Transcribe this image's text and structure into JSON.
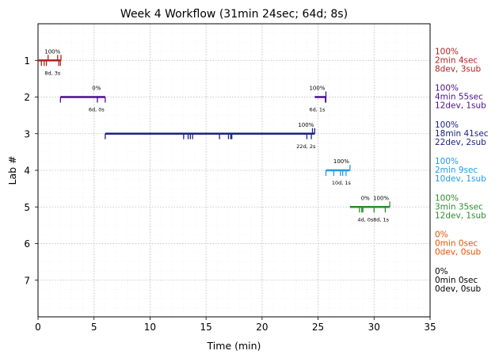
{
  "chart_data": {
    "type": "timeline",
    "title": "Week 4 Workflow (31min 24sec; 64d; 8s)",
    "xlabel": "Time (min)",
    "ylabel": "Lab #",
    "xlim": [
      0,
      35
    ],
    "ylim": [
      8,
      0
    ],
    "x_ticks": [
      0,
      5,
      10,
      15,
      20,
      25,
      30,
      35
    ],
    "y_ticks": [
      1,
      2,
      3,
      4,
      5,
      6,
      7
    ],
    "grid": true,
    "labs": [
      {
        "lab": 1,
        "color": "#b22222",
        "segments": [
          {
            "start": 0.0,
            "end": 2.07,
            "pct_label": "100%",
            "count_label": "8d, 3s",
            "dev_ticks": [
              0.3,
              0.55,
              0.75,
              1.85,
              2.0
            ],
            "sub_ticks": [
              0.9,
              1.75,
              2.05
            ]
          }
        ],
        "summary": [
          "100%",
          "2min 4sec",
          "8dev, 3sub"
        ]
      },
      {
        "lab": 2,
        "color": "#4b0f8f",
        "segments": [
          {
            "start": 2.0,
            "end": 6.0,
            "pct_label": "0%",
            "count_label": "6d, 0s",
            "dev_ticks": [
              2.0,
              5.3,
              6.0
            ],
            "sub_ticks": []
          },
          {
            "start": 24.7,
            "end": 25.7,
            "pct_label": "100%",
            "count_label": "6d, 1s",
            "dev_ticks": [
              25.65,
              25.7
            ],
            "sub_ticks": [
              25.7
            ]
          }
        ],
        "summary": [
          "100%",
          "4min 55sec",
          "12dev, 1sub"
        ]
      },
      {
        "lab": 3,
        "color": "#1a237e",
        "segments": [
          {
            "start": 6.0,
            "end": 24.7,
            "pct_label": "100%",
            "count_label": "22d, 2s",
            "dev_ticks": [
              6.0,
              13.0,
              13.4,
              13.6,
              13.8,
              16.2,
              17.0,
              17.2,
              17.3,
              24.0,
              24.4
            ],
            "sub_ticks": [
              24.5,
              24.7
            ]
          }
        ],
        "summary": [
          "100%",
          "18min 41sec",
          "22dev, 2sub"
        ]
      },
      {
        "lab": 4,
        "color": "#1e9be8",
        "segments": [
          {
            "start": 25.7,
            "end": 27.85,
            "pct_label": "100%",
            "count_label": "10d, 1s",
            "dev_ticks": [
              25.7,
              26.4,
              27.0,
              27.2,
              27.5
            ],
            "sub_ticks": [
              27.85
            ]
          }
        ],
        "summary": [
          "100%",
          "2min 9sec",
          "10dev, 1sub"
        ]
      },
      {
        "lab": 5,
        "color": "#2e8b2e",
        "segments": [
          {
            "start": 27.85,
            "end": 30.0,
            "pct_label": "0%",
            "count_label": "4d, 0s",
            "dev_ticks": [
              28.7,
              28.9,
              29.0
            ],
            "sub_ticks": []
          },
          {
            "start": 30.0,
            "end": 31.4,
            "pct_label": "100%",
            "count_label": "8d, 1s",
            "dev_ticks": [
              30.0,
              31.0
            ],
            "sub_ticks": [
              31.4
            ]
          }
        ],
        "summary": [
          "100%",
          "3min 35sec",
          "12dev, 1sub"
        ]
      },
      {
        "lab": 6,
        "color": "#e65100",
        "segments": [],
        "summary": [
          "0%",
          "0min 0sec",
          "0dev, 0sub"
        ]
      },
      {
        "lab": 7,
        "color": "#000000",
        "segments": [],
        "summary": [
          "0%",
          "0min 0sec",
          "0dev, 0sub"
        ]
      }
    ]
  }
}
